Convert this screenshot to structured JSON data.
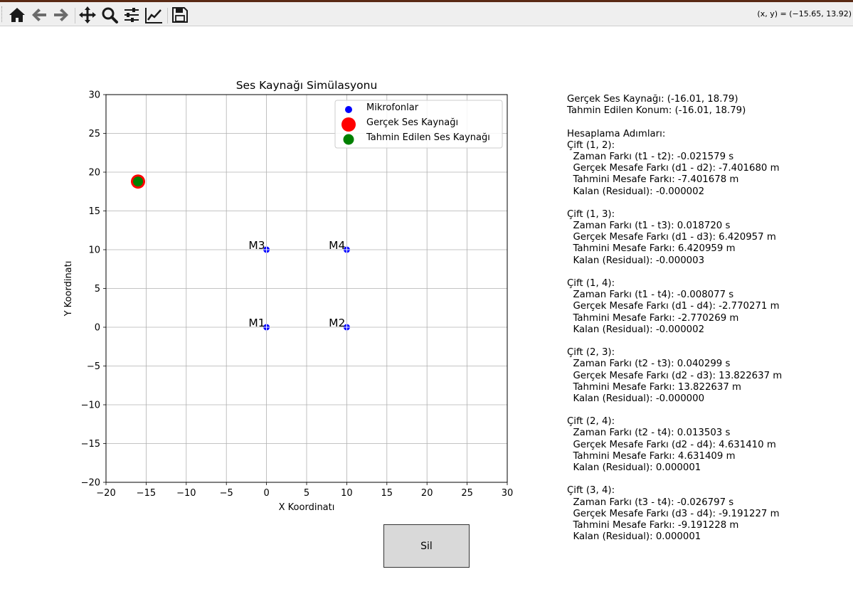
{
  "toolbar": {
    "buttons": [
      {
        "name": "home-icon"
      },
      {
        "name": "back-arrow-icon"
      },
      {
        "name": "forward-arrow-icon"
      },
      {
        "name": "pan-icon"
      },
      {
        "name": "zoom-icon"
      },
      {
        "name": "configure-subplots-icon"
      },
      {
        "name": "edit-axis-icon"
      },
      {
        "name": "save-icon"
      }
    ],
    "coordinates": "(x, y) = (−15.65, 13.92)"
  },
  "chart_data": {
    "type": "scatter",
    "title": "Ses Kaynağı Simülasyonu",
    "xlabel": "X Koordinatı",
    "ylabel": "Y Koordinatı",
    "xlim": [
      -20,
      30
    ],
    "ylim": [
      -20,
      30
    ],
    "xticks": [
      -20,
      -15,
      -10,
      -5,
      0,
      5,
      10,
      15,
      20,
      25,
      30
    ],
    "yticks": [
      -20,
      -15,
      -10,
      -5,
      0,
      5,
      10,
      15,
      20,
      25,
      30
    ],
    "grid": true,
    "legend_position": "top-right",
    "series": [
      {
        "name": "Mikrofonlar",
        "color": "#0000ff",
        "points": [
          [
            0,
            0
          ],
          [
            10,
            0
          ],
          [
            0,
            10
          ],
          [
            10,
            10
          ]
        ],
        "labels": [
          "M1",
          "M2",
          "M3",
          "M4"
        ]
      },
      {
        "name": "Gerçek Ses Kaynağı",
        "color": "#ff0000",
        "points": [
          [
            -16.01,
            18.79
          ]
        ]
      },
      {
        "name": "Tahmin Edilen Ses Kaynağı",
        "color": "#008000",
        "points": [
          [
            -16.01,
            18.79
          ]
        ]
      }
    ]
  },
  "info": {
    "lines": [
      "Gerçek Ses Kaynağı: (-16.01, 18.79)",
      "Tahmin Edilen Konum: (-16.01, 18.79)",
      "",
      "Hesaplama Adımları:",
      "Çift (1, 2):",
      "  Zaman Farkı (t1 - t2): -0.021579 s",
      "  Gerçek Mesafe Farkı (d1 - d2): -7.401680 m",
      "  Tahmini Mesafe Farkı: -7.401678 m",
      "  Kalan (Residual): -0.000002",
      "",
      "Çift (1, 3):",
      "  Zaman Farkı (t1 - t3): 0.018720 s",
      "  Gerçek Mesafe Farkı (d1 - d3): 6.420957 m",
      "  Tahmini Mesafe Farkı: 6.420959 m",
      "  Kalan (Residual): -0.000003",
      "",
      "Çift (1, 4):",
      "  Zaman Farkı (t1 - t4): -0.008077 s",
      "  Gerçek Mesafe Farkı (d1 - d4): -2.770271 m",
      "  Tahmini Mesafe Farkı: -2.770269 m",
      "  Kalan (Residual): -0.000002",
      "",
      "Çift (2, 3):",
      "  Zaman Farkı (t2 - t3): 0.040299 s",
      "  Gerçek Mesafe Farkı (d2 - d3): 13.822637 m",
      "  Tahmini Mesafe Farkı: 13.822637 m",
      "  Kalan (Residual): -0.000000",
      "",
      "Çift (2, 4):",
      "  Zaman Farkı (t2 - t4): 0.013503 s",
      "  Gerçek Mesafe Farkı (d2 - d4): 4.631410 m",
      "  Tahmini Mesafe Farkı: 4.631409 m",
      "  Kalan (Residual): 0.000001",
      "",
      "Çift (3, 4):",
      "  Zaman Farkı (t3 - t4): -0.026797 s",
      "  Gerçek Mesafe Farkı (d3 - d4): -9.191227 m",
      "  Tahmini Mesafe Farkı: -9.191228 m",
      "  Kalan (Residual): 0.000001"
    ]
  },
  "button": {
    "label": "Sil"
  }
}
